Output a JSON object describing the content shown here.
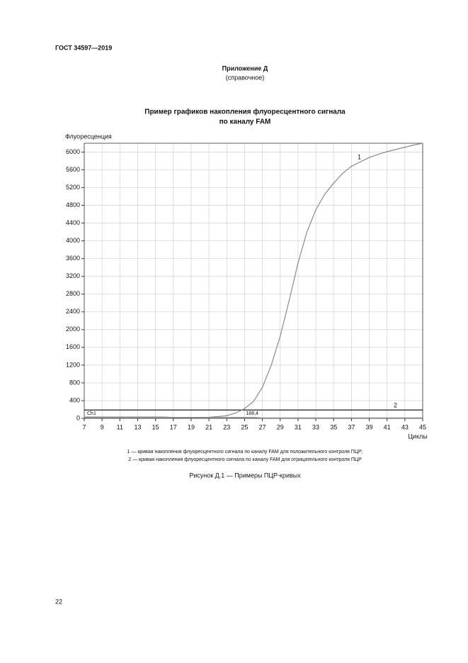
{
  "header": {
    "standard": "ГОСТ 34597—2019",
    "appendix": "Приложение Д",
    "appendix_note": "(справочное)"
  },
  "chart_data": {
    "type": "line",
    "title": [
      "Пример графиков накопления флуоресцентного сигнала",
      "по каналу FAM"
    ],
    "y_label": "Флуоресценция",
    "x_label": "Циклы",
    "x": [
      7,
      8,
      9,
      10,
      11,
      12,
      13,
      14,
      15,
      16,
      17,
      18,
      19,
      20,
      21,
      22,
      23,
      24,
      25,
      26,
      27,
      28,
      29,
      30,
      31,
      32,
      33,
      34,
      35,
      36,
      37,
      38,
      39,
      40,
      41,
      42,
      43,
      44,
      45
    ],
    "series": [
      {
        "name": "1",
        "color": "#8a8a8a",
        "values": [
          20,
          20,
          20,
          20,
          20,
          20,
          20,
          20,
          20,
          20,
          20,
          20,
          20,
          20,
          25,
          40,
          60,
          120,
          220,
          380,
          700,
          1200,
          1850,
          2650,
          3500,
          4200,
          4700,
          5050,
          5300,
          5520,
          5680,
          5780,
          5880,
          5950,
          6010,
          6060,
          6110,
          6160,
          6200
        ]
      },
      {
        "name": "2",
        "color": "#8a8a8a",
        "values": [
          30,
          30,
          30,
          30,
          30,
          30,
          30,
          30,
          30,
          30,
          20,
          20,
          20,
          20,
          20,
          20,
          20,
          20,
          20,
          20,
          10,
          10,
          10,
          10,
          10,
          10,
          10,
          10,
          10,
          10,
          10,
          10,
          10,
          10,
          10,
          10,
          10,
          10,
          10
        ]
      }
    ],
    "xlim": [
      7,
      45
    ],
    "ylim": [
      0,
      6200
    ],
    "xticks": [
      7,
      9,
      11,
      13,
      15,
      17,
      19,
      21,
      23,
      25,
      27,
      29,
      31,
      33,
      35,
      37,
      39,
      41,
      43,
      45
    ],
    "yticks": [
      0,
      400,
      800,
      1200,
      1600,
      2000,
      2400,
      2800,
      3200,
      3600,
      4000,
      4400,
      4800,
      5200,
      5600,
      6000
    ],
    "grid": true,
    "threshold": {
      "value": 188.4,
      "label": "188,4",
      "name": "Ch1",
      "color": "#000000"
    }
  },
  "notes": [
    "1 — кривая накопления флуоресцентного сигнала по каналу FAM для положительного контроля ПЦР;",
    "2 — кривая накопления флуоресцентного сигнала по каналу FAM для отрицательного контроля ПЦР"
  ],
  "caption": "Рисунок Д.1 — Примеры ПЦР-кривых",
  "page_number": "22"
}
